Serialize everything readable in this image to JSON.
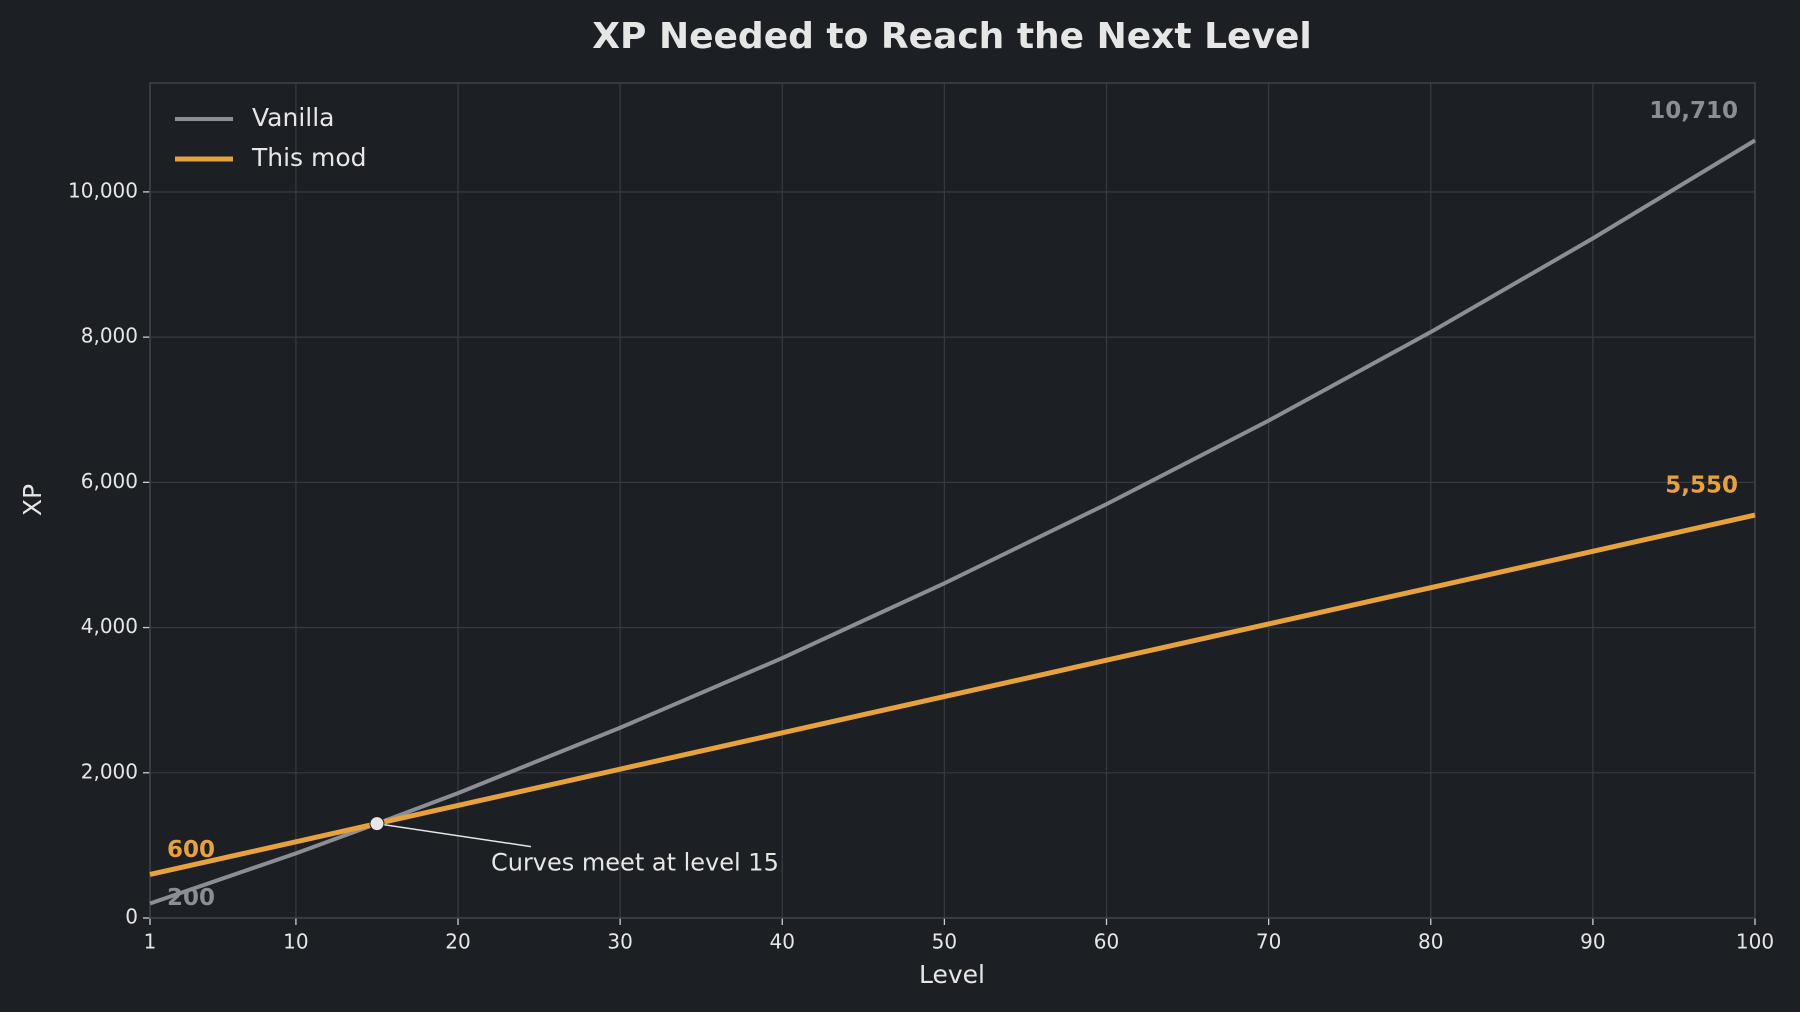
{
  "chart_data": {
    "type": "line",
    "title": "XP Needed to Reach the Next Level",
    "x_label": "Level",
    "y_label": "XP",
    "x": [
      1,
      10,
      15,
      20,
      30,
      40,
      50,
      60,
      70,
      80,
      90,
      100
    ],
    "series": [
      {
        "name": "Vanilla",
        "color": "#8b8e95",
        "values": [
          200,
          890,
          1300,
          1720,
          2620,
          3580,
          4610,
          5700,
          6850,
          8070,
          9360,
          10710
        ],
        "value_labels": [
          "200",
          null,
          null,
          null,
          null,
          null,
          null,
          null,
          null,
          null,
          null,
          "10,710"
        ]
      },
      {
        "name": "This mod",
        "color": "#e8a23c",
        "values": [
          600,
          1050,
          1300,
          1550,
          2050,
          2550,
          3050,
          3550,
          4050,
          4550,
          5050,
          5550
        ],
        "value_labels": [
          "600",
          null,
          null,
          null,
          null,
          null,
          null,
          null,
          null,
          null,
          null,
          "5,550"
        ]
      }
    ],
    "annotation": {
      "text": "Curves meet at level 15",
      "x": 15,
      "y": 1300
    },
    "xlim": [
      1,
      100
    ],
    "ylim": [
      0,
      11500
    ],
    "xticks": [
      1,
      10,
      20,
      30,
      40,
      50,
      60,
      70,
      80,
      90,
      100
    ],
    "yticks": [
      0,
      {
        "value": 2000,
        "label": "2,000"
      },
      {
        "value": 4000,
        "label": "4,000"
      },
      {
        "value": 6000,
        "label": "6,000"
      },
      {
        "value": 8000,
        "label": "8,000"
      },
      {
        "value": 10000,
        "label": "10,000"
      }
    ],
    "grid": true,
    "legend": "upper left"
  }
}
